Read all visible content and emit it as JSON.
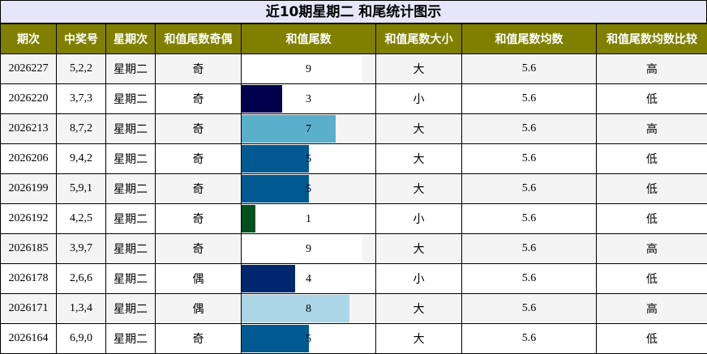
{
  "title": "近10期星期二 和尾统计图示",
  "headers": [
    "期次",
    "中奖号",
    "星期次",
    "和值尾数奇偶",
    "和值尾数",
    "和值尾数大小",
    "和值尾数均数",
    "和值尾数均数比较"
  ],
  "bar_max": 10,
  "rows": [
    {
      "issue": "2026227",
      "numbers": "5,2,2",
      "weekday": "星期二",
      "parity": "奇",
      "tail": 9,
      "tail_label": "9",
      "size": "大",
      "avg": "5.6",
      "compare": "高",
      "bar_color": "#ffffff"
    },
    {
      "issue": "2026220",
      "numbers": "3,7,3",
      "weekday": "星期二",
      "parity": "奇",
      "tail": 3,
      "tail_label": "3",
      "size": "小",
      "avg": "5.6",
      "compare": "低",
      "bar_color": "#00004c"
    },
    {
      "issue": "2026213",
      "numbers": "8,7,2",
      "weekday": "星期二",
      "parity": "奇",
      "tail": 7,
      "tail_label": "7",
      "size": "大",
      "avg": "5.6",
      "compare": "高",
      "bar_color": "#5aafcb"
    },
    {
      "issue": "2026206",
      "numbers": "9,4,2",
      "weekday": "星期二",
      "parity": "奇",
      "tail": 5,
      "tail_label": "5",
      "size": "大",
      "avg": "5.6",
      "compare": "低",
      "bar_color": "#005a91"
    },
    {
      "issue": "2026199",
      "numbers": "5,9,1",
      "weekday": "星期二",
      "parity": "奇",
      "tail": 5,
      "tail_label": "5",
      "size": "大",
      "avg": "5.6",
      "compare": "低",
      "bar_color": "#005a91"
    },
    {
      "issue": "2026192",
      "numbers": "4,2,5",
      "weekday": "星期二",
      "parity": "奇",
      "tail": 1,
      "tail_label": "1",
      "size": "小",
      "avg": "5.6",
      "compare": "低",
      "bar_color": "#00501e"
    },
    {
      "issue": "2026185",
      "numbers": "3,9,7",
      "weekday": "星期二",
      "parity": "奇",
      "tail": 9,
      "tail_label": "9",
      "size": "大",
      "avg": "5.6",
      "compare": "高",
      "bar_color": "#ffffff"
    },
    {
      "issue": "2026178",
      "numbers": "2,6,6",
      "weekday": "星期二",
      "parity": "偶",
      "tail": 4,
      "tail_label": "4",
      "size": "小",
      "avg": "5.6",
      "compare": "低",
      "bar_color": "#00276e"
    },
    {
      "issue": "2026171",
      "numbers": "1,3,4",
      "weekday": "星期二",
      "parity": "偶",
      "tail": 8,
      "tail_label": "8",
      "size": "大",
      "avg": "5.6",
      "compare": "高",
      "bar_color": "#acd6e6"
    },
    {
      "issue": "2026164",
      "numbers": "6,9,0",
      "weekday": "星期二",
      "parity": "奇",
      "tail": 5,
      "tail_label": "5",
      "size": "大",
      "avg": "5.6",
      "compare": "低",
      "bar_color": "#005a91"
    }
  ]
}
